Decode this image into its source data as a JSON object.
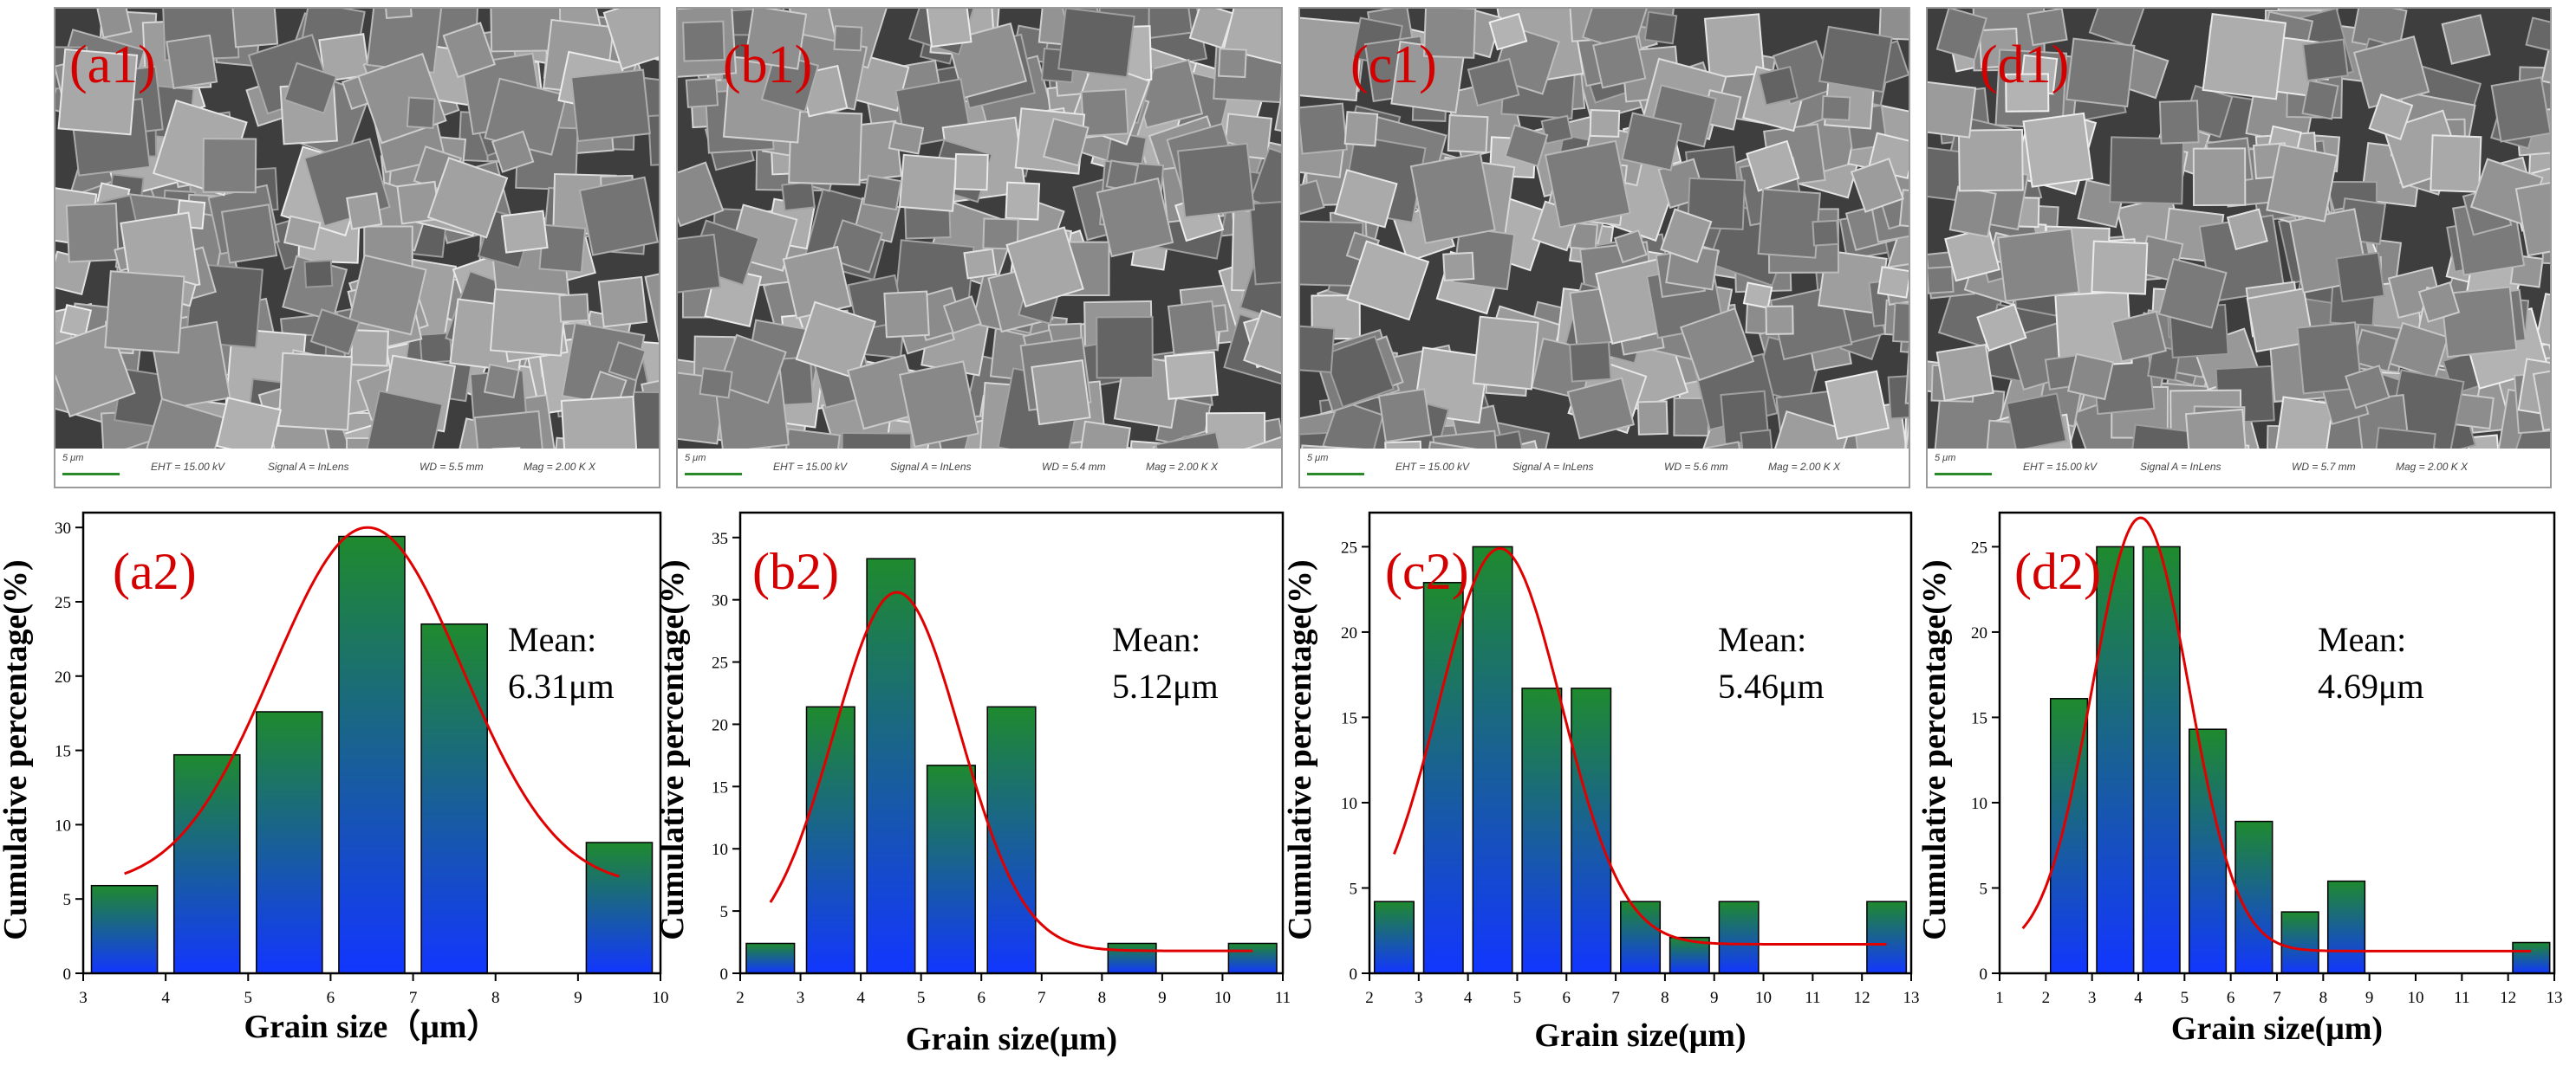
{
  "sem_panels": [
    {
      "label": "(a1)",
      "scale": "5 μm",
      "eht": "EHT = 15.00 kV",
      "signal": "Signal A = InLens",
      "wd": "WD = 5.5 mm",
      "mag": "Mag = 2.00 K X"
    },
    {
      "label": "(b1)",
      "scale": "5 μm",
      "eht": "EHT = 15.00 kV",
      "signal": "Signal A = InLens",
      "wd": "WD = 5.4 mm",
      "mag": "Mag = 2.00 K X"
    },
    {
      "label": "(c1)",
      "scale": "5 μm",
      "eht": "EHT = 15.00 kV",
      "signal": "Signal A = InLens",
      "wd": "WD = 5.6 mm",
      "mag": "Mag = 2.00 K X"
    },
    {
      "label": "(d1)",
      "scale": "5 μm",
      "eht": "EHT = 15.00 kV",
      "signal": "Signal A = InLens",
      "wd": "WD = 5.7 mm",
      "mag": "Mag = 2.00 K X"
    }
  ],
  "colors": {
    "bar_top": "#1f8a2e",
    "bar_bottom": "#1236ff",
    "fit_curve": "#e00000",
    "panel_label": "#d40000",
    "axis": "#000000"
  },
  "chart_data": [
    {
      "type": "bar",
      "panel_label": "(a2)",
      "xlabel": "Grain size（μm）",
      "ylabel": "Cumulative percentage(%)",
      "xlim": [
        3,
        10
      ],
      "ylim": [
        0,
        31
      ],
      "xticks": [
        "3",
        "4",
        "5",
        "6",
        "7",
        "8",
        "9",
        "10"
      ],
      "yticks": [
        "0",
        "5",
        "10",
        "15",
        "20",
        "25",
        "30"
      ],
      "bin_width": 0.8,
      "bins": [
        3.5,
        4.5,
        5.5,
        6.5,
        7.5,
        9.5
      ],
      "values": [
        5.9,
        14.7,
        17.6,
        29.4,
        23.5,
        8.8
      ],
      "fit": {
        "type": "gaussian",
        "mean": 6.45,
        "sd": 1.15,
        "amplitude": 24.2,
        "baseline": 5.8,
        "x_range": [
          3.5,
          9.5
        ]
      },
      "annotation": {
        "line1": "Mean:",
        "line2": "6.31μm"
      }
    },
    {
      "type": "bar",
      "panel_label": "(b2)",
      "xlabel": "Grain size(μm)",
      "ylabel": "Cumulative percentage(%)",
      "xlim": [
        2,
        11
      ],
      "ylim": [
        0,
        37
      ],
      "xticks": [
        "2",
        "3",
        "4",
        "5",
        "6",
        "7",
        "8",
        "9",
        "10",
        "11"
      ],
      "yticks": [
        "0",
        "5",
        "10",
        "15",
        "20",
        "25",
        "30",
        "35"
      ],
      "bin_width": 0.8,
      "bins": [
        2.5,
        3.5,
        4.5,
        5.5,
        6.5,
        8.5,
        10.5
      ],
      "values": [
        2.4,
        21.4,
        33.3,
        16.7,
        21.4,
        2.4,
        2.4
      ],
      "fit": {
        "type": "gaussian",
        "mean": 4.6,
        "sd": 1.05,
        "amplitude": 28.8,
        "baseline": 1.8,
        "x_range": [
          2.5,
          10.5
        ]
      },
      "annotation": {
        "line1": "Mean:",
        "line2": "5.12μm"
      }
    },
    {
      "type": "bar",
      "panel_label": "(c2)",
      "xlabel": "Grain size(μm)",
      "ylabel": "Cumulative percentage(%)",
      "xlim": [
        2,
        13
      ],
      "ylim": [
        0,
        27
      ],
      "xticks": [
        "2",
        "3",
        "4",
        "5",
        "6",
        "7",
        "8",
        "9",
        "10",
        "11",
        "12",
        "13"
      ],
      "yticks": [
        "0",
        "5",
        "10",
        "15",
        "20",
        "25"
      ],
      "bin_width": 0.8,
      "bins": [
        2.5,
        3.5,
        4.5,
        5.5,
        6.5,
        7.5,
        8.5,
        9.5,
        12.5
      ],
      "values": [
        4.2,
        22.9,
        25.0,
        16.7,
        16.7,
        4.2,
        2.1,
        4.2,
        4.2
      ],
      "fit": {
        "type": "gaussian",
        "mean": 4.65,
        "sd": 1.25,
        "amplitude": 23.2,
        "baseline": 1.7,
        "x_range": [
          2.5,
          12.5
        ]
      },
      "annotation": {
        "line1": "Mean:",
        "line2": "5.46μm"
      }
    },
    {
      "type": "bar",
      "panel_label": "(d2)",
      "xlabel": "Grain size(μm)",
      "ylabel": "Cumulative percentage(%)",
      "xlim": [
        1,
        13
      ],
      "ylim": [
        0,
        27
      ],
      "xticks": [
        "1",
        "2",
        "3",
        "4",
        "5",
        "6",
        "7",
        "8",
        "9",
        "10",
        "11",
        "12",
        "13"
      ],
      "yticks": [
        "0",
        "5",
        "10",
        "15",
        "20",
        "25"
      ],
      "bin_width": 0.8,
      "bins": [
        2.5,
        3.5,
        4.5,
        5.5,
        6.5,
        7.5,
        8.5,
        12.5
      ],
      "values": [
        16.1,
        25.0,
        25.0,
        14.3,
        8.9,
        3.6,
        5.4,
        1.8
      ],
      "fit": {
        "type": "gaussian",
        "mean": 4.05,
        "sd": 1.05,
        "amplitude": 25.4,
        "baseline": 1.3,
        "x_range": [
          1.5,
          12.5
        ]
      },
      "annotation": {
        "line1": "Mean:",
        "line2": "4.69μm"
      }
    }
  ]
}
